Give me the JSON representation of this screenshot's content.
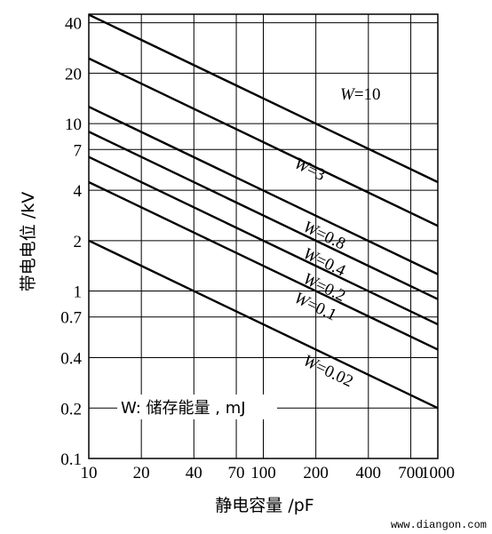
{
  "chart_data": {
    "type": "line",
    "xlabel": "静电容量 /pF",
    "ylabel": "带电电位 /kV",
    "x_scale": "log",
    "y_scale": "log",
    "xlim": [
      10,
      1000
    ],
    "ylim": [
      0.1,
      45
    ],
    "x_ticks": [
      10,
      20,
      40,
      70,
      100,
      200,
      400,
      700,
      1000
    ],
    "x_tick_labels": [
      "10",
      "20",
      "40",
      "70",
      "100",
      "200",
      "400",
      "700",
      "1000"
    ],
    "y_ticks": [
      0.1,
      0.2,
      0.4,
      0.7,
      1,
      2,
      4,
      7,
      10,
      20,
      40
    ],
    "y_tick_labels": [
      "0.1",
      "0.2",
      "0.4",
      "0.7",
      "1",
      "2",
      "4",
      "7",
      "10",
      "20",
      "40"
    ],
    "grid": true,
    "note": "W: 储存能量 , mJ",
    "series": [
      {
        "label": "W=10",
        "energy_mJ": 10,
        "x": [
          10,
          1000
        ],
        "y": [
          44.7,
          4.47
        ]
      },
      {
        "label": "W=3",
        "energy_mJ": 3,
        "x": [
          10,
          1000
        ],
        "y": [
          24.5,
          2.45
        ]
      },
      {
        "label": "W=0.8",
        "energy_mJ": 0.8,
        "x": [
          10,
          1000
        ],
        "y": [
          12.6,
          1.26
        ]
      },
      {
        "label": "W=0.4",
        "energy_mJ": 0.4,
        "x": [
          10,
          1000
        ],
        "y": [
          8.94,
          0.894
        ]
      },
      {
        "label": "W=0.2",
        "energy_mJ": 0.2,
        "x": [
          10,
          1000
        ],
        "y": [
          6.32,
          0.632
        ]
      },
      {
        "label": "W=0.1",
        "energy_mJ": 0.1,
        "x": [
          10,
          1000
        ],
        "y": [
          4.47,
          0.447
        ]
      },
      {
        "label": "W=0.02",
        "energy_mJ": 0.02,
        "x": [
          10,
          1000
        ],
        "y": [
          2.0,
          0.2
        ]
      }
    ]
  },
  "watermark": "www.diangon.com"
}
